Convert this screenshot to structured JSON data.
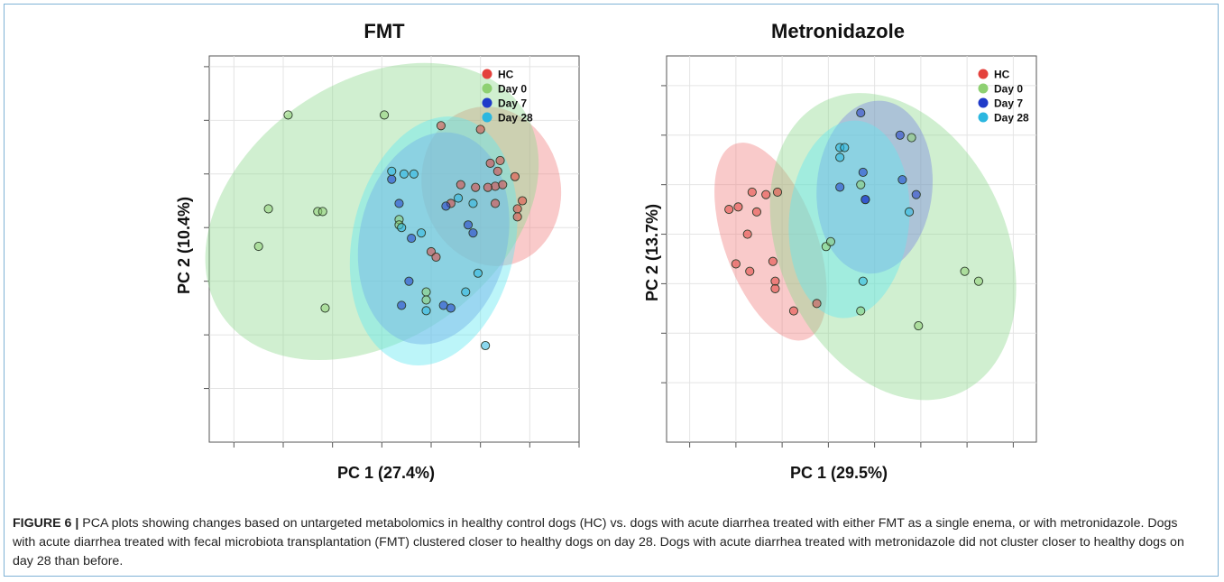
{
  "chart_data": [
    {
      "type": "scatter",
      "title": "FMT",
      "xlabel": "PC 1 (27.4%)",
      "ylabel": "PC 2 (10.4%)",
      "xlim": [
        -4.5,
        3.0
      ],
      "ylim": [
        -4.0,
        3.2
      ],
      "grid": true,
      "legend": "top-right",
      "x_ticks": [
        -4,
        -3,
        -2,
        -1,
        0,
        1,
        2,
        3
      ],
      "y_ticks": [
        -3,
        -2,
        -1,
        0,
        1,
        2,
        3
      ],
      "series": [
        {
          "name": "HC",
          "color": "#e4413c",
          "ellipse_color": "#f08080",
          "ellipse": {
            "cx": 1.22,
            "cy": 0.77,
            "rx": 1.4,
            "ry": 1.5,
            "angle": -15
          },
          "points": [
            [
              0.2,
              1.9
            ],
            [
              1.0,
              1.83
            ],
            [
              1.2,
              1.2
            ],
            [
              1.4,
              1.25
            ],
            [
              1.35,
              1.05
            ],
            [
              1.7,
              0.95
            ],
            [
              0.6,
              0.8
            ],
            [
              0.9,
              0.75
            ],
            [
              1.3,
              0.77
            ],
            [
              1.45,
              0.8
            ],
            [
              1.15,
              0.75
            ],
            [
              1.3,
              0.45
            ],
            [
              1.85,
              0.5
            ],
            [
              1.75,
              0.35
            ],
            [
              0.4,
              0.45
            ],
            [
              1.75,
              0.2
            ],
            [
              0.0,
              -0.45
            ],
            [
              0.1,
              -0.55
            ]
          ]
        },
        {
          "name": "Day 0",
          "color": "#8ed072",
          "ellipse_color": "#90d890",
          "ellipse": {
            "cx": -1.2,
            "cy": 0.3,
            "rx": 3.7,
            "ry": 2.4,
            "angle": -35
          },
          "points": [
            [
              -2.9,
              2.1
            ],
            [
              -0.95,
              2.1
            ],
            [
              -3.3,
              0.35
            ],
            [
              -2.3,
              0.3
            ],
            [
              -2.2,
              0.3
            ],
            [
              -3.5,
              -0.35
            ],
            [
              -0.65,
              0.15
            ],
            [
              -0.65,
              0.05
            ],
            [
              -0.1,
              -1.2
            ],
            [
              -0.1,
              -1.35
            ],
            [
              -2.15,
              -1.5
            ]
          ]
        },
        {
          "name": "Day 7",
          "color": "#1f3ac9",
          "ellipse_color": "#7a86e0",
          "ellipse": {
            "cx": 0.05,
            "cy": -0.2,
            "rx": 1.5,
            "ry": 2.0,
            "angle": 12
          },
          "points": [
            [
              -0.8,
              0.9
            ],
            [
              -0.65,
              0.45
            ],
            [
              0.3,
              0.4
            ],
            [
              -0.4,
              -0.2
            ],
            [
              0.75,
              0.05
            ],
            [
              0.85,
              -0.1
            ],
            [
              -0.45,
              -1.0
            ],
            [
              -0.6,
              -1.45
            ],
            [
              0.25,
              -1.45
            ],
            [
              0.4,
              -1.5
            ]
          ]
        },
        {
          "name": "Day 28",
          "color": "#2bb7e0",
          "ellipse_color": "#5fe8f0",
          "ellipse": {
            "cx": 0.05,
            "cy": -0.25,
            "rx": 1.65,
            "ry": 2.35,
            "angle": 12
          },
          "points": [
            [
              -0.8,
              1.05
            ],
            [
              -0.35,
              1.0
            ],
            [
              -0.55,
              1.0
            ],
            [
              0.55,
              0.55
            ],
            [
              0.85,
              0.45
            ],
            [
              -0.6,
              0.0
            ],
            [
              -0.2,
              -0.1
            ],
            [
              0.95,
              -0.85
            ],
            [
              0.7,
              -1.2
            ],
            [
              -0.1,
              -1.55
            ],
            [
              1.1,
              -2.2
            ]
          ]
        }
      ]
    },
    {
      "type": "scatter",
      "title": "Metronidazole",
      "xlabel": "PC 1 (29.5%)",
      "ylabel": "PC 2 (13.7%)",
      "xlim": [
        -4.5,
        3.5
      ],
      "ylim": [
        -4.2,
        3.6
      ],
      "grid": true,
      "legend": "top-right",
      "x_ticks": [
        -4,
        -3,
        -2,
        -1,
        0,
        1,
        2,
        3
      ],
      "y_ticks": [
        -3,
        -2,
        -1,
        0,
        1,
        2,
        3
      ],
      "series": [
        {
          "name": "HC",
          "color": "#e4413c",
          "ellipse_color": "#f08080",
          "ellipse": {
            "cx": -2.25,
            "cy": -0.15,
            "rx": 1.0,
            "ry": 2.1,
            "angle": -20
          },
          "points": [
            [
              -2.65,
              0.85
            ],
            [
              -2.35,
              0.8
            ],
            [
              -3.15,
              0.5
            ],
            [
              -2.95,
              0.55
            ],
            [
              -2.55,
              0.45
            ],
            [
              -2.1,
              0.85
            ],
            [
              -2.75,
              0.0
            ],
            [
              -3.0,
              -0.6
            ],
            [
              -2.7,
              -0.75
            ],
            [
              -2.2,
              -0.55
            ],
            [
              -2.15,
              -0.95
            ],
            [
              -2.15,
              -1.1
            ],
            [
              -1.75,
              -1.55
            ],
            [
              -1.25,
              -1.4
            ]
          ]
        },
        {
          "name": "Day 0",
          "color": "#8ed072",
          "ellipse_color": "#90d890",
          "ellipse": {
            "cx": 0.4,
            "cy": -0.25,
            "rx": 2.45,
            "ry": 3.25,
            "angle": -25
          },
          "points": [
            [
              -0.3,
              1.0
            ],
            [
              0.8,
              1.95
            ],
            [
              -1.05,
              -0.25
            ],
            [
              -0.95,
              -0.15
            ],
            [
              -0.3,
              -1.55
            ],
            [
              1.95,
              -0.75
            ],
            [
              2.25,
              -0.95
            ],
            [
              0.95,
              -1.85
            ]
          ]
        },
        {
          "name": "Day 7",
          "color": "#1f3ac9",
          "ellipse_color": "#7a86e0",
          "ellipse": {
            "cx": 0.0,
            "cy": 0.95,
            "rx": 1.25,
            "ry": 1.75,
            "angle": 5
          },
          "points": [
            [
              -0.3,
              2.45
            ],
            [
              0.55,
              2.0
            ],
            [
              -0.75,
              0.95
            ],
            [
              -0.25,
              1.25
            ],
            [
              0.6,
              1.1
            ],
            [
              0.9,
              0.8
            ],
            [
              -0.2,
              0.7
            ],
            [
              -0.2,
              0.7
            ]
          ]
        },
        {
          "name": "Day 28",
          "color": "#2bb7e0",
          "ellipse_color": "#5fe8f0",
          "ellipse": {
            "cx": -0.55,
            "cy": 0.3,
            "rx": 1.3,
            "ry": 2.0,
            "angle": 5
          },
          "points": [
            [
              -0.75,
              1.75
            ],
            [
              -0.65,
              1.75
            ],
            [
              -0.75,
              1.55
            ],
            [
              0.75,
              0.45
            ],
            [
              -0.25,
              -0.95
            ]
          ]
        }
      ]
    }
  ],
  "caption": {
    "label": "FIGURE 6 |",
    "text": " PCA plots showing changes based on untargeted metabolomics in healthy control dogs (HC) vs. dogs with acute diarrhea treated with either FMT as a single enema, or with metronidazole. Dogs with acute diarrhea treated with fecal microbiota transplantation (FMT) clustered closer to healthy dogs on day 28. Dogs with acute diarrhea treated with metronidazole did not cluster closer to healthy dogs on day 28 than before."
  }
}
